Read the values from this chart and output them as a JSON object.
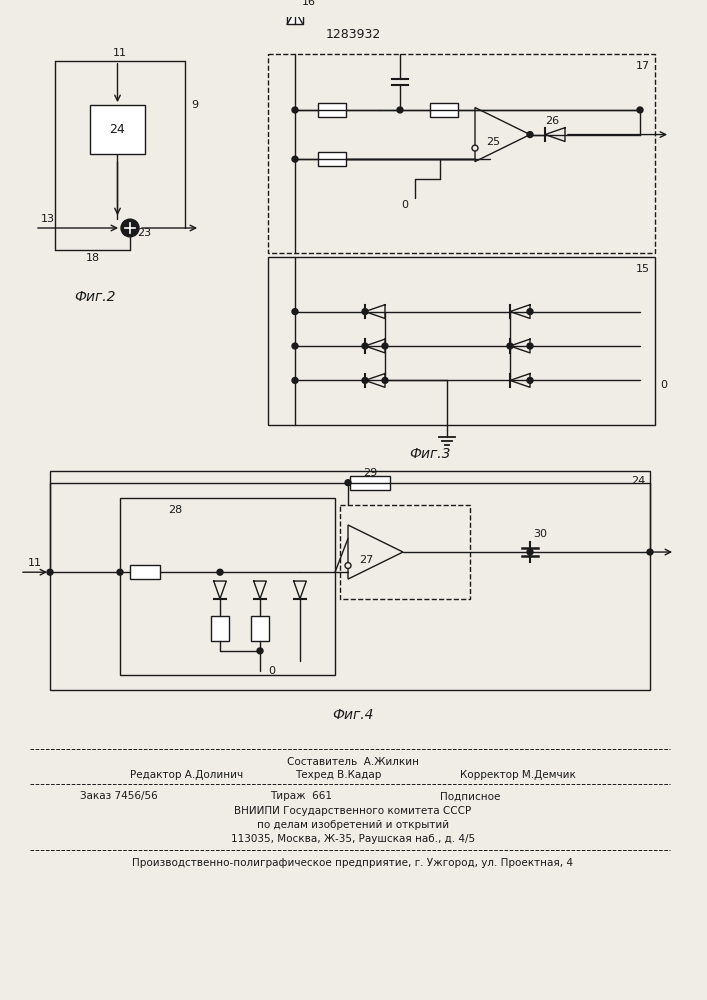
{
  "patent_number": "1283932",
  "bg_color": "#f0ede6",
  "line_color": "#1a1a1a",
  "fig2_label": "Фиг.2",
  "fig3_label": "Фиг.3",
  "fig4_label": "Фиг.4",
  "footer_line0": "Составитель  А.Жилкин",
  "footer_line1_left": "Редактор А.Долинич",
  "footer_line1_mid": "Техред В.Кадар",
  "footer_line1_right": "Корректор М.Демчик",
  "footer_line2_left": "Заказ 7456/56",
  "footer_line2_mid": "Тираж  661",
  "footer_line2_right": "Подписное",
  "footer_line3": "ВНИИПИ Государственного комитета СССР",
  "footer_line4": "по делам изобретений и открытий",
  "footer_line5": "113035, Москва, Ж-35, Раушская наб., д. 4/5",
  "footer_line6": "Производственно-полиграфическое предприятие, г. Ужгород, ул. Проектная, 4"
}
